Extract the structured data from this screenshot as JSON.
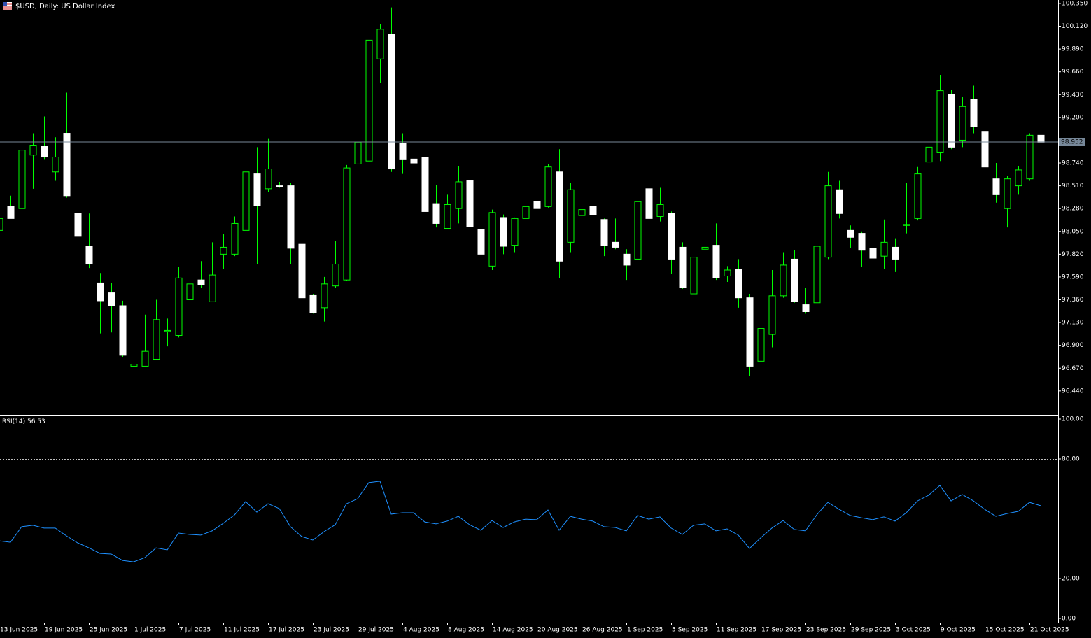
{
  "chart_data": [
    {
      "type": "candlestick",
      "title": "$USD, Daily:  US Dollar Index",
      "categories": [
        "13 Jun 2025",
        null,
        null,
        null,
        "19 Jun 2025",
        null,
        null,
        null,
        "25 Jun 2025",
        null,
        null,
        null,
        "1 Jul 2025",
        null,
        null,
        null,
        "7 Jul 2025",
        null,
        null,
        null,
        "11 Jul 2025",
        null,
        null,
        null,
        "17 Jul 2025",
        null,
        null,
        null,
        "23 Jul 2025",
        null,
        null,
        null,
        "29 Jul 2025",
        null,
        null,
        null,
        "4 Aug 2025",
        null,
        null,
        null,
        "8 Aug 2025",
        null,
        null,
        null,
        "14 Aug 2025",
        null,
        null,
        null,
        "20 Aug 2025",
        null,
        null,
        null,
        "26 Aug 2025",
        null,
        null,
        null,
        "1 Sep 2025",
        null,
        null,
        null,
        "5 Sep 2025",
        null,
        null,
        null,
        "11 Sep 2025",
        null,
        null,
        null,
        "17 Sep 2025",
        null,
        null,
        null,
        "23 Sep 2025",
        null,
        null,
        null,
        "29 Sep 2025",
        null,
        null,
        null,
        "3 Oct 2025",
        null,
        null,
        null,
        "9 Oct 2025",
        null,
        null,
        null,
        "15 Oct 2025",
        null,
        null,
        null,
        "21 Oct 2025",
        null
      ],
      "open": [
        98.06,
        98.3,
        98.28,
        98.82,
        98.91,
        98.65,
        99.04,
        98.23,
        97.9,
        97.53,
        97.43,
        97.3,
        96.69,
        96.69,
        96.76,
        97.04,
        97.0,
        97.36,
        97.56,
        97.34,
        97.82,
        97.82,
        98.06,
        98.63,
        98.48,
        98.51,
        98.51,
        97.92,
        97.41,
        97.28,
        97.5,
        97.56,
        98.73,
        98.76,
        99.79,
        100.04,
        98.94,
        98.78,
        98.8,
        98.33,
        98.08,
        98.28,
        98.56,
        98.07,
        97.7,
        98.19,
        97.91,
        98.18,
        98.35,
        98.3,
        98.65,
        97.94,
        98.21,
        98.3,
        98.17,
        97.94,
        97.82,
        97.77,
        98.48,
        98.2,
        98.23,
        97.89,
        97.42,
        97.87,
        97.91,
        97.6,
        97.67,
        97.38,
        96.74,
        97.01,
        97.4,
        97.77,
        97.31,
        97.33,
        97.79,
        98.47,
        98.06,
        98.03,
        97.88,
        97.8,
        97.89,
        98.11,
        98.18,
        98.75,
        98.85,
        99.43,
        98.97,
        99.38,
        99.06,
        98.58,
        98.28,
        98.51,
        98.58,
        99.02
      ],
      "high": [
        98.41,
        98.41,
        98.9,
        99.04,
        99.21,
        99.0,
        99.45,
        98.3,
        98.23,
        97.63,
        97.53,
        97.35,
        96.98,
        97.21,
        97.36,
        97.17,
        97.69,
        97.79,
        97.75,
        97.94,
        98.02,
        98.2,
        98.71,
        98.9,
        98.99,
        98.55,
        98.54,
        97.98,
        97.42,
        97.59,
        97.95,
        98.72,
        99.17,
        100.0,
        100.14,
        100.31,
        99.04,
        99.12,
        98.87,
        98.52,
        98.42,
        98.71,
        98.66,
        98.14,
        98.27,
        98.22,
        98.19,
        98.34,
        98.42,
        98.73,
        98.88,
        98.54,
        98.61,
        98.76,
        98.18,
        98.18,
        97.87,
        98.62,
        98.66,
        98.49,
        98.25,
        97.94,
        97.83,
        97.9,
        98.13,
        97.7,
        97.77,
        97.42,
        97.12,
        97.66,
        97.84,
        97.86,
        97.48,
        97.94,
        98.65,
        98.56,
        98.11,
        98.05,
        97.93,
        98.17,
        97.98,
        98.54,
        98.7,
        99.11,
        99.63,
        99.48,
        99.41,
        99.52,
        99.1,
        98.74,
        98.61,
        98.71,
        99.04,
        99.19
      ],
      "low": [
        97.7,
        98.18,
        98.03,
        98.48,
        98.78,
        98.56,
        98.39,
        97.74,
        97.68,
        97.02,
        97.03,
        96.78,
        96.4,
        96.69,
        96.75,
        96.89,
        96.98,
        97.24,
        97.48,
        97.34,
        97.67,
        97.8,
        98.03,
        97.72,
        98.45,
        98.49,
        97.72,
        97.34,
        97.22,
        97.14,
        97.48,
        97.55,
        98.62,
        98.71,
        99.55,
        98.65,
        98.63,
        98.71,
        98.16,
        98.09,
        98.07,
        98.13,
        97.98,
        97.65,
        97.66,
        97.82,
        97.84,
        98.13,
        98.21,
        98.29,
        97.58,
        97.84,
        98.16,
        98.18,
        97.8,
        97.87,
        97.56,
        97.74,
        98.09,
        98.15,
        97.62,
        97.47,
        97.28,
        97.84,
        97.56,
        97.54,
        97.28,
        96.59,
        96.26,
        96.88,
        97.38,
        97.33,
        97.22,
        97.31,
        97.77,
        98.18,
        97.88,
        97.69,
        97.49,
        97.67,
        97.64,
        98.03,
        98.16,
        98.73,
        98.76,
        98.88,
        98.9,
        99.04,
        98.68,
        98.34,
        98.09,
        98.42,
        98.56,
        98.81
      ],
      "close": [
        98.18,
        98.18,
        98.87,
        98.92,
        98.8,
        98.8,
        98.41,
        98.0,
        97.72,
        97.35,
        97.3,
        96.8,
        96.71,
        96.84,
        97.16,
        97.05,
        97.58,
        97.52,
        97.51,
        97.61,
        97.89,
        98.13,
        98.65,
        98.31,
        98.68,
        98.5,
        97.88,
        97.38,
        97.23,
        97.52,
        97.72,
        98.69,
        98.95,
        99.98,
        100.09,
        98.68,
        98.78,
        98.74,
        98.25,
        98.13,
        98.32,
        98.55,
        98.1,
        97.82,
        98.24,
        97.9,
        98.18,
        98.3,
        98.28,
        98.7,
        97.75,
        98.47,
        98.27,
        98.22,
        97.91,
        97.89,
        97.71,
        98.35,
        98.18,
        98.32,
        97.77,
        97.48,
        97.79,
        97.89,
        97.58,
        97.66,
        97.38,
        96.69,
        97.07,
        97.4,
        97.71,
        97.34,
        97.24,
        97.9,
        98.51,
        98.23,
        97.99,
        97.86,
        97.78,
        97.94,
        97.77,
        98.12,
        98.63,
        98.9,
        99.47,
        98.9,
        99.31,
        99.11,
        98.7,
        98.42,
        98.58,
        98.67,
        99.02,
        98.95
      ],
      "up_color": "#00ff00",
      "down_color": "#ffffff",
      "last_price": 98.952,
      "price_line_color": "#778899",
      "ylim": [
        96.22,
        100.385
      ],
      "yticks": [
        {
          "value": 100.35,
          "label": "100.350"
        },
        {
          "value": 100.12,
          "label": "100.120"
        },
        {
          "value": 99.89,
          "label": "99.890"
        },
        {
          "value": 99.66,
          "label": "99.660"
        },
        {
          "value": 99.43,
          "label": "99.430"
        },
        {
          "value": 99.2,
          "label": "99.200"
        },
        {
          "value": 98.74,
          "label": "98.740"
        },
        {
          "value": 98.51,
          "label": "98.510"
        },
        {
          "value": 98.28,
          "label": "98.280"
        },
        {
          "value": 98.05,
          "label": "98.050"
        },
        {
          "value": 97.82,
          "label": "97.820"
        },
        {
          "value": 97.59,
          "label": "97.590"
        },
        {
          "value": 97.36,
          "label": "97.360"
        },
        {
          "value": 97.13,
          "label": "97.130"
        },
        {
          "value": 96.9,
          "label": "96.900"
        },
        {
          "value": 96.67,
          "label": "96.670"
        },
        {
          "value": 96.44,
          "label": "96.440"
        }
      ]
    },
    {
      "type": "line",
      "title": "RSI(14)",
      "series": [
        {
          "color": "#1e90ff",
          "values": [
            38.9,
            38.2,
            46.0,
            46.7,
            45.3,
            45.3,
            41.4,
            37.9,
            35.4,
            32.6,
            32.3,
            29.1,
            28.4,
            30.5,
            35.4,
            34.4,
            42.8,
            42.1,
            41.8,
            43.9,
            47.7,
            51.9,
            58.6,
            53.3,
            57.5,
            55.1,
            46.0,
            41.1,
            39.3,
            43.5,
            47.0,
            57.5,
            60.0,
            68.1,
            68.8,
            52.3,
            53.0,
            53.0,
            48.4,
            47.4,
            48.8,
            51.2,
            47.0,
            44.2,
            49.1,
            45.6,
            48.4,
            49.8,
            49.5,
            54.4,
            44.2,
            51.2,
            49.8,
            48.8,
            46.0,
            45.6,
            43.9,
            51.6,
            49.8,
            50.9,
            45.3,
            42.1,
            46.7,
            47.4,
            43.9,
            44.9,
            41.8,
            35.1,
            40.4,
            45.3,
            49.1,
            44.6,
            43.9,
            51.9,
            58.2,
            54.7,
            51.6,
            50.5,
            49.5,
            50.9,
            48.8,
            53.0,
            58.9,
            61.8,
            66.7,
            58.9,
            62.1,
            58.9,
            54.7,
            51.2,
            52.6,
            53.7,
            58.2,
            56.53
          ]
        }
      ],
      "ylim": [
        -2.1,
        101.75
      ],
      "yticks": [
        {
          "value": 100,
          "label": "100.00"
        },
        {
          "value": 80,
          "label": "80.00"
        },
        {
          "value": 20,
          "label": "20.00"
        },
        {
          "value": 0,
          "label": "0.00"
        }
      ],
      "level_lines": true
    }
  ]
}
